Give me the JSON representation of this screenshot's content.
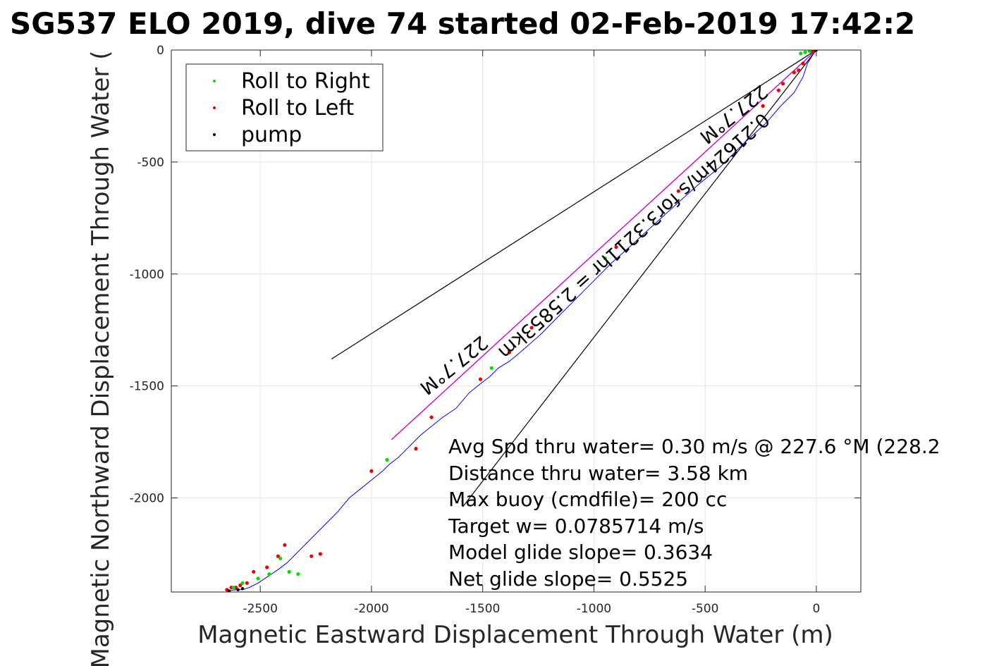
{
  "chart_data": {
    "type": "scatter",
    "title": "SG537 ELO 2019, dive 74 started 02-Feb-2019 17:42:2",
    "xlabel": "Magnetic Eastward Displacement Through Water (m)",
    "ylabel": "Magnetic Northward Displacement Through Water (",
    "xlim": [
      -2900,
      200
    ],
    "ylim": [
      -2420,
      0
    ],
    "x_ticks": [
      -2500,
      -2000,
      -1500,
      -1000,
      -500,
      0
    ],
    "y_ticks": [
      0,
      -500,
      -1000,
      -1500,
      -2000
    ],
    "x_tick_labels": [
      "-2500",
      "-2000",
      "-1500",
      "-1000",
      "-500",
      "0"
    ],
    "y_tick_labels": [
      "0",
      "-500",
      "-1000",
      "-1500",
      "-2000"
    ],
    "grid": true,
    "legend": {
      "placement": "top-left",
      "entries": [
        {
          "label": "Roll to Right",
          "color": "#00dd00"
        },
        {
          "label": "Roll to Left",
          "color": "#ee0000"
        },
        {
          "label": "pump",
          "color": "#000000"
        }
      ]
    },
    "track": {
      "name": "track",
      "color": "#0000ff",
      "x": [
        0,
        -15,
        -40,
        -60,
        -100,
        -160,
        -230,
        -330,
        -430,
        -530,
        -620,
        -720,
        -830,
        -920,
        -1000,
        -1080,
        -1160,
        -1240,
        -1320,
        -1380,
        -1430,
        -1450,
        -1470,
        -1510,
        -1560,
        -1620,
        -1680,
        -1730,
        -1780,
        -1830,
        -1880,
        -1920,
        -1950,
        -2000,
        -2050,
        -2100,
        -2150,
        -2200,
        -2250,
        -2300,
        -2340,
        -2380,
        -2420,
        -2450,
        -2480,
        -2510,
        -2530,
        -2550,
        -2580,
        -2610,
        -2640
      ],
      "y": [
        0,
        -20,
        -60,
        -120,
        -190,
        -250,
        -330,
        -420,
        -520,
        -600,
        -680,
        -770,
        -870,
        -950,
        -1030,
        -1110,
        -1190,
        -1270,
        -1340,
        -1390,
        -1420,
        -1440,
        -1460,
        -1490,
        -1530,
        -1600,
        -1640,
        -1680,
        -1720,
        -1770,
        -1820,
        -1850,
        -1880,
        -1920,
        -1960,
        -2000,
        -2060,
        -2110,
        -2160,
        -2210,
        -2250,
        -2290,
        -2320,
        -2340,
        -2360,
        -2380,
        -2390,
        -2400,
        -2410,
        -2410,
        -2415
      ]
    },
    "model_line": {
      "color": "#cc00cc",
      "x": [
        0,
        -1910
      ],
      "y": [
        0,
        -1740
      ]
    },
    "heading_lines": [
      {
        "color": "#000000",
        "x": [
          0,
          -2180
        ],
        "y": [
          0,
          -1380
        ]
      },
      {
        "color": "#000000",
        "x": [
          0,
          -1590
        ],
        "y": [
          0,
          -2040
        ]
      }
    ],
    "roll_right": {
      "x": [
        -30,
        -50,
        -70,
        -950,
        -1460,
        -1930,
        -2330,
        -2370,
        -2410,
        -2460,
        -2510,
        -2580,
        -2620
      ],
      "y": [
        -5,
        -10,
        -15,
        -930,
        -1420,
        -1830,
        -2340,
        -2330,
        -2270,
        -2340,
        -2360,
        -2380,
        -2400
      ]
    },
    "roll_left": {
      "x": [
        -10,
        -20,
        -60,
        -80,
        -100,
        -150,
        -170,
        -240,
        -620,
        -900,
        -1280,
        -1380,
        -1510,
        -1730,
        -1800,
        -2000,
        -2230,
        -2270,
        -2390,
        -2420,
        -2470,
        -2530,
        -2560,
        -2590,
        -2610,
        -2630,
        -2650
      ],
      "y": [
        -3,
        -8,
        -60,
        -90,
        -100,
        -150,
        -180,
        -250,
        -630,
        -880,
        -1240,
        -1350,
        -1470,
        -1640,
        -1780,
        -1880,
        -2250,
        -2260,
        -2210,
        -2260,
        -2310,
        -2330,
        -2380,
        -2390,
        -2400,
        -2400,
        -2410
      ]
    },
    "pump": {
      "x": [
        0,
        -3,
        -2580,
        -2600,
        -2640
      ],
      "y": [
        0,
        -2,
        -2405,
        -2410,
        -2415
      ]
    },
    "annotations": {
      "heading_upper": "227.7°M",
      "heading_lower": "227.7°M",
      "speed_text": "0.21624m/s for3.3211hr = 2.5853km"
    },
    "stats": [
      "Avg Spd thru water=  0.30 m/s @ 227.6 °M (228.2",
      "Distance thru water=  3.58 km",
      "Max buoy (cmdfile)= 200 cc",
      "Target w= 0.0785714 m/s",
      "Model glide slope= 0.3634",
      "Net glide slope= 0.5525"
    ]
  }
}
